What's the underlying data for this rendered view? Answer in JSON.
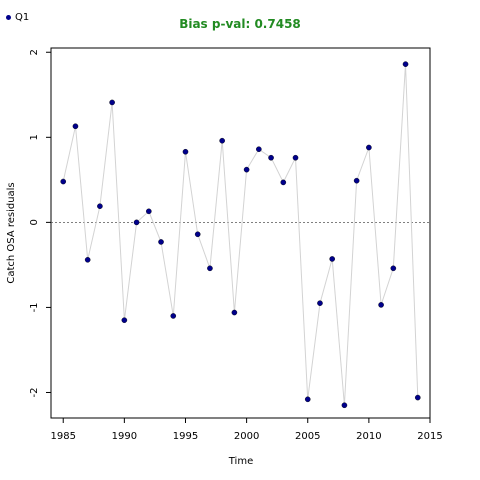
{
  "legend": {
    "label": "Q1",
    "color": "#00008b"
  },
  "title": "Bias p-val: 0.7458",
  "title_color": "#228b22",
  "chart_data": {
    "type": "scatter",
    "title": "Bias p-val: 0.7458",
    "xlabel": "Time",
    "ylabel": "Catch OSA residuals",
    "xlim": [
      1984,
      2015
    ],
    "ylim": [
      -2.3,
      2.05
    ],
    "xticks": [
      1985,
      1990,
      1995,
      2000,
      2005,
      2010,
      2015
    ],
    "yticks": [
      -2,
      -1,
      0,
      1,
      2
    ],
    "reference_line": 0,
    "series": [
      {
        "name": "Q1",
        "point_color": "#00008b",
        "line_color": "#d3d3d3",
        "x": [
          1985,
          1986,
          1987,
          1988,
          1989,
          1990,
          1991,
          1992,
          1993,
          1994,
          1995,
          1996,
          1997,
          1998,
          1999,
          2000,
          2001,
          2002,
          2003,
          2004,
          2005,
          2006,
          2007,
          2008,
          2009,
          2010,
          2011,
          2012,
          2013,
          2014
        ],
        "y": [
          0.48,
          1.13,
          -0.44,
          0.19,
          1.41,
          -1.15,
          0.0,
          0.13,
          -0.23,
          -1.1,
          0.83,
          -0.14,
          -0.54,
          0.96,
          -1.06,
          0.62,
          0.86,
          0.76,
          0.47,
          0.76,
          -2.08,
          -0.95,
          -0.43,
          -2.15,
          0.49,
          0.88,
          -0.97,
          -0.54,
          1.86,
          -2.06
        ]
      }
    ]
  }
}
